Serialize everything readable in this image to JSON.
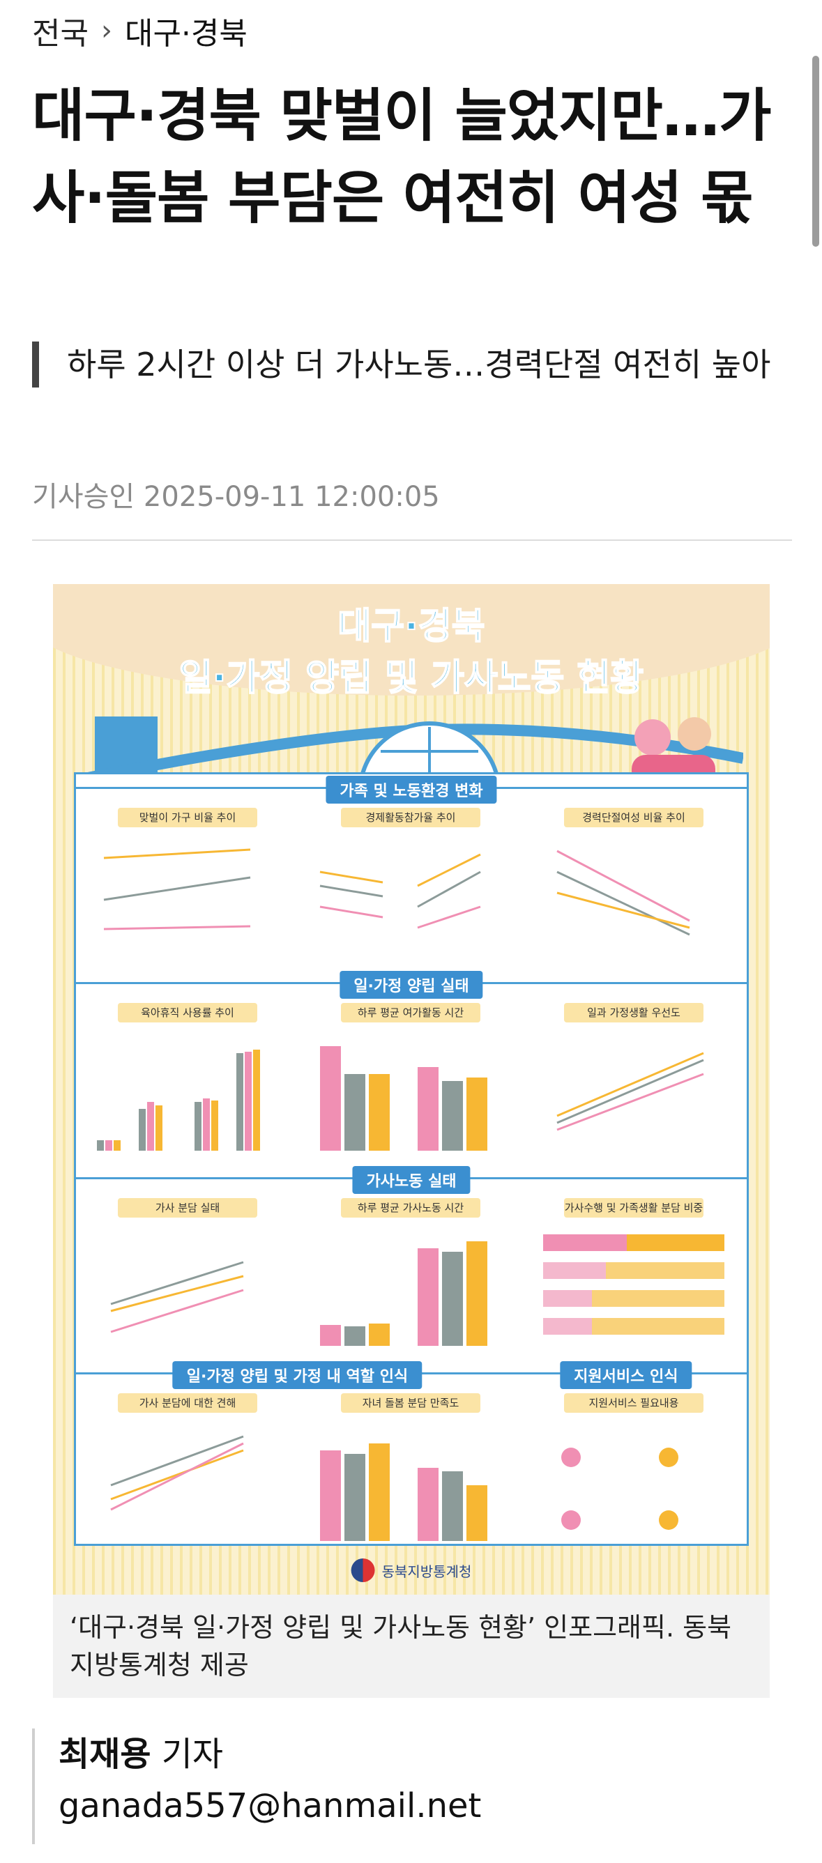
{
  "breadcrumb": {
    "root": "전국",
    "section": "대구·경북"
  },
  "article": {
    "headline": "대구·경북 맞벌이 늘었지만…가사·돌봄 부담은 여전히 여성 몫",
    "subheadline": "하루 2시간 이상 더 가사노동…경력단절 여전히 높아",
    "published": "기사승인 2025-09-11 12:00:05"
  },
  "infographic": {
    "title_line1": "대구·경북",
    "title_line2": "일·가정 양립 및 가사노동 현황",
    "sections": [
      {
        "title": "가족 및 노동환경 변화",
        "panels": [
          "맞벌이 가구 비율 추이",
          "경제활동참가율 추이",
          "경력단절여성 비율 추이"
        ]
      },
      {
        "title": "일·가정 양립 실태",
        "panels": [
          "육아휴직 사용률 추이",
          "하루 평균 여가활동 시간",
          "일과 가정생활 우선도"
        ]
      },
      {
        "title": "가사노동 실태",
        "panels": [
          "가사 분담 실태",
          "하루 평균 가사노동 시간",
          "가사수행 및 가족생활 분담 비중"
        ]
      },
      {
        "title": "일·가정 양립 및 가정 내 역할 인식",
        "panels": [
          "가사 분담에 대한 견해",
          "자녀 돌봄 분담 만족도"
        ]
      },
      {
        "title": "지원서비스 인식",
        "panels": [
          "지원서비스 필요내용"
        ]
      }
    ],
    "source_logo": "동북지방통계청",
    "colors": {
      "national": "#8c9b99",
      "daegu": "#f08fb3",
      "gyeongbuk": "#f7b733",
      "accent": "#3b8fd0"
    }
  },
  "caption": "‘대구·경북 일·가정 양립 및 가사노동 현황’ 인포그래픽. 동북지방통계청 제공",
  "byline": {
    "name": "최재용",
    "role": "기자",
    "email": "ganada557@hanmail.net"
  }
}
